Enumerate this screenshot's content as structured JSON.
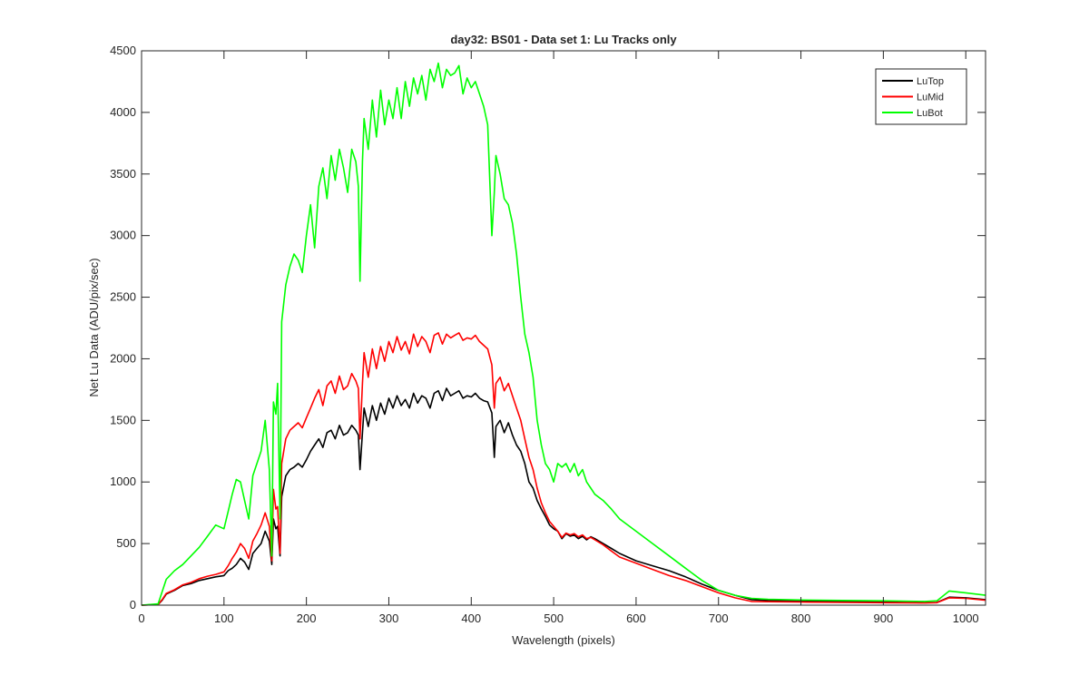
{
  "chart_data": {
    "type": "line",
    "title": "day32: BS01 - Data set 1: Lu Tracks only",
    "xlabel": "Wavelength (pixels)",
    "ylabel": "Net Lu Data (ADU/pix/sec)",
    "xlim": [
      0,
      1024
    ],
    "ylim": [
      0,
      4500
    ],
    "xticks": [
      0,
      100,
      200,
      300,
      400,
      500,
      600,
      700,
      800,
      900,
      1000
    ],
    "yticks": [
      0,
      500,
      1000,
      1500,
      2000,
      2500,
      3000,
      3500,
      4000,
      4500
    ],
    "grid": false,
    "legend_position": "top-right",
    "series": [
      {
        "name": "LuTop",
        "color": "#000000",
        "x": [
          0,
          20,
          25,
          30,
          40,
          50,
          60,
          70,
          80,
          90,
          100,
          105,
          110,
          115,
          120,
          125,
          130,
          135,
          140,
          145,
          150,
          155,
          158,
          160,
          163,
          165,
          168,
          170,
          175,
          180,
          185,
          190,
          195,
          200,
          205,
          210,
          215,
          220,
          225,
          230,
          235,
          240,
          245,
          250,
          255,
          260,
          263,
          265,
          268,
          270,
          275,
          280,
          285,
          290,
          295,
          300,
          305,
          310,
          315,
          320,
          325,
          330,
          335,
          340,
          345,
          350,
          355,
          360,
          365,
          370,
          375,
          380,
          385,
          390,
          395,
          400,
          405,
          410,
          415,
          420,
          425,
          428,
          430,
          435,
          440,
          445,
          450,
          455,
          460,
          465,
          470,
          475,
          480,
          485,
          490,
          495,
          500,
          505,
          510,
          515,
          520,
          525,
          530,
          535,
          540,
          545,
          550,
          560,
          570,
          580,
          600,
          620,
          640,
          660,
          680,
          700,
          720,
          740,
          760,
          800,
          850,
          900,
          950,
          965,
          980,
          1000,
          1024
        ],
        "y": [
          0,
          5,
          40,
          90,
          120,
          160,
          175,
          200,
          215,
          230,
          240,
          280,
          300,
          330,
          380,
          350,
          290,
          420,
          460,
          500,
          600,
          520,
          330,
          700,
          620,
          640,
          400,
          880,
          1050,
          1100,
          1120,
          1150,
          1120,
          1180,
          1250,
          1300,
          1350,
          1280,
          1400,
          1420,
          1350,
          1460,
          1380,
          1400,
          1460,
          1420,
          1380,
          1100,
          1400,
          1600,
          1450,
          1620,
          1500,
          1640,
          1550,
          1680,
          1600,
          1700,
          1620,
          1670,
          1600,
          1720,
          1640,
          1700,
          1680,
          1600,
          1720,
          1740,
          1660,
          1760,
          1700,
          1720,
          1740,
          1680,
          1700,
          1690,
          1720,
          1680,
          1660,
          1650,
          1560,
          1200,
          1450,
          1500,
          1400,
          1480,
          1380,
          1300,
          1250,
          1150,
          1000,
          950,
          850,
          780,
          720,
          650,
          620,
          600,
          540,
          580,
          560,
          570,
          540,
          560,
          530,
          555,
          540,
          500,
          460,
          420,
          360,
          320,
          280,
          230,
          170,
          120,
          80,
          45,
          38,
          35,
          30,
          25,
          20,
          22,
          65,
          60,
          45
        ]
      },
      {
        "name": "LuMid",
        "color": "#ff0000",
        "x": [
          0,
          20,
          25,
          30,
          40,
          50,
          60,
          70,
          80,
          90,
          100,
          105,
          110,
          115,
          120,
          125,
          130,
          135,
          140,
          145,
          150,
          155,
          158,
          160,
          163,
          165,
          168,
          170,
          175,
          180,
          185,
          190,
          195,
          200,
          205,
          210,
          215,
          220,
          225,
          230,
          235,
          240,
          245,
          250,
          255,
          260,
          263,
          265,
          268,
          270,
          275,
          280,
          285,
          290,
          295,
          300,
          305,
          310,
          315,
          320,
          325,
          330,
          335,
          340,
          345,
          350,
          355,
          360,
          365,
          370,
          375,
          380,
          385,
          390,
          395,
          400,
          405,
          410,
          415,
          420,
          425,
          428,
          430,
          435,
          440,
          445,
          450,
          455,
          460,
          465,
          470,
          475,
          480,
          485,
          490,
          495,
          500,
          505,
          510,
          515,
          520,
          525,
          530,
          535,
          540,
          545,
          550,
          560,
          570,
          580,
          600,
          620,
          640,
          660,
          680,
          700,
          720,
          740,
          760,
          800,
          850,
          900,
          950,
          965,
          980,
          1000,
          1024
        ],
        "y": [
          0,
          5,
          45,
          95,
          125,
          165,
          185,
          215,
          235,
          250,
          270,
          320,
          380,
          430,
          500,
          460,
          380,
          520,
          580,
          650,
          750,
          640,
          360,
          940,
          780,
          800,
          420,
          1150,
          1350,
          1420,
          1450,
          1480,
          1440,
          1520,
          1600,
          1680,
          1750,
          1620,
          1780,
          1820,
          1720,
          1860,
          1750,
          1780,
          1880,
          1820,
          1760,
          1350,
          1800,
          2050,
          1850,
          2080,
          1920,
          2100,
          1980,
          2140,
          2050,
          2180,
          2070,
          2140,
          2040,
          2200,
          2100,
          2180,
          2140,
          2050,
          2190,
          2210,
          2120,
          2200,
          2170,
          2190,
          2210,
          2150,
          2170,
          2160,
          2190,
          2140,
          2110,
          2080,
          1950,
          1600,
          1800,
          1850,
          1740,
          1800,
          1700,
          1600,
          1500,
          1350,
          1200,
          1100,
          950,
          830,
          750,
          680,
          640,
          600,
          550,
          585,
          570,
          580,
          555,
          570,
          540,
          550,
          530,
          490,
          440,
          390,
          340,
          290,
          240,
          200,
          150,
          100,
          60,
          30,
          28,
          25,
          22,
          20,
          18,
          20,
          60,
          55,
          40
        ]
      },
      {
        "name": "LuBot",
        "color": "#00ff00",
        "x": [
          0,
          20,
          25,
          30,
          40,
          50,
          60,
          70,
          80,
          90,
          100,
          105,
          110,
          115,
          120,
          125,
          130,
          135,
          140,
          145,
          150,
          155,
          158,
          160,
          163,
          165,
          168,
          170,
          175,
          180,
          185,
          190,
          195,
          200,
          205,
          210,
          215,
          220,
          225,
          230,
          235,
          240,
          245,
          250,
          255,
          260,
          263,
          265,
          268,
          270,
          275,
          280,
          285,
          290,
          295,
          300,
          305,
          310,
          315,
          320,
          325,
          330,
          335,
          340,
          345,
          350,
          355,
          360,
          365,
          370,
          375,
          380,
          385,
          390,
          395,
          400,
          405,
          410,
          415,
          420,
          425,
          428,
          430,
          435,
          440,
          445,
          450,
          455,
          460,
          465,
          470,
          475,
          480,
          485,
          490,
          495,
          500,
          505,
          510,
          515,
          520,
          525,
          530,
          535,
          540,
          545,
          550,
          560,
          570,
          580,
          600,
          620,
          640,
          660,
          680,
          700,
          720,
          740,
          760,
          800,
          850,
          900,
          950,
          965,
          980,
          1000,
          1024
        ],
        "y": [
          0,
          10,
          110,
          210,
          280,
          330,
          400,
          470,
          560,
          650,
          620,
          760,
          900,
          1020,
          1000,
          850,
          700,
          1050,
          1150,
          1250,
          1500,
          1100,
          400,
          1650,
          1550,
          1800,
          700,
          2300,
          2600,
          2750,
          2850,
          2800,
          2700,
          3000,
          3250,
          2900,
          3400,
          3550,
          3300,
          3650,
          3450,
          3700,
          3550,
          3350,
          3700,
          3600,
          3400,
          2630,
          3600,
          3950,
          3700,
          4100,
          3800,
          4180,
          3900,
          4100,
          3950,
          4200,
          3950,
          4250,
          4050,
          4280,
          4150,
          4300,
          4100,
          4350,
          4250,
          4400,
          4200,
          4350,
          4300,
          4320,
          4380,
          4150,
          4280,
          4200,
          4250,
          4150,
          4050,
          3900,
          3000,
          3350,
          3650,
          3500,
          3300,
          3250,
          3100,
          2850,
          2500,
          2200,
          2050,
          1850,
          1500,
          1300,
          1150,
          1100,
          1000,
          1150,
          1120,
          1150,
          1080,
          1150,
          1050,
          1100,
          1000,
          950,
          900,
          850,
          780,
          700,
          600,
          500,
          400,
          300,
          200,
          120,
          80,
          55,
          48,
          42,
          38,
          35,
          30,
          35,
          115,
          100,
          80
        ]
      }
    ]
  }
}
